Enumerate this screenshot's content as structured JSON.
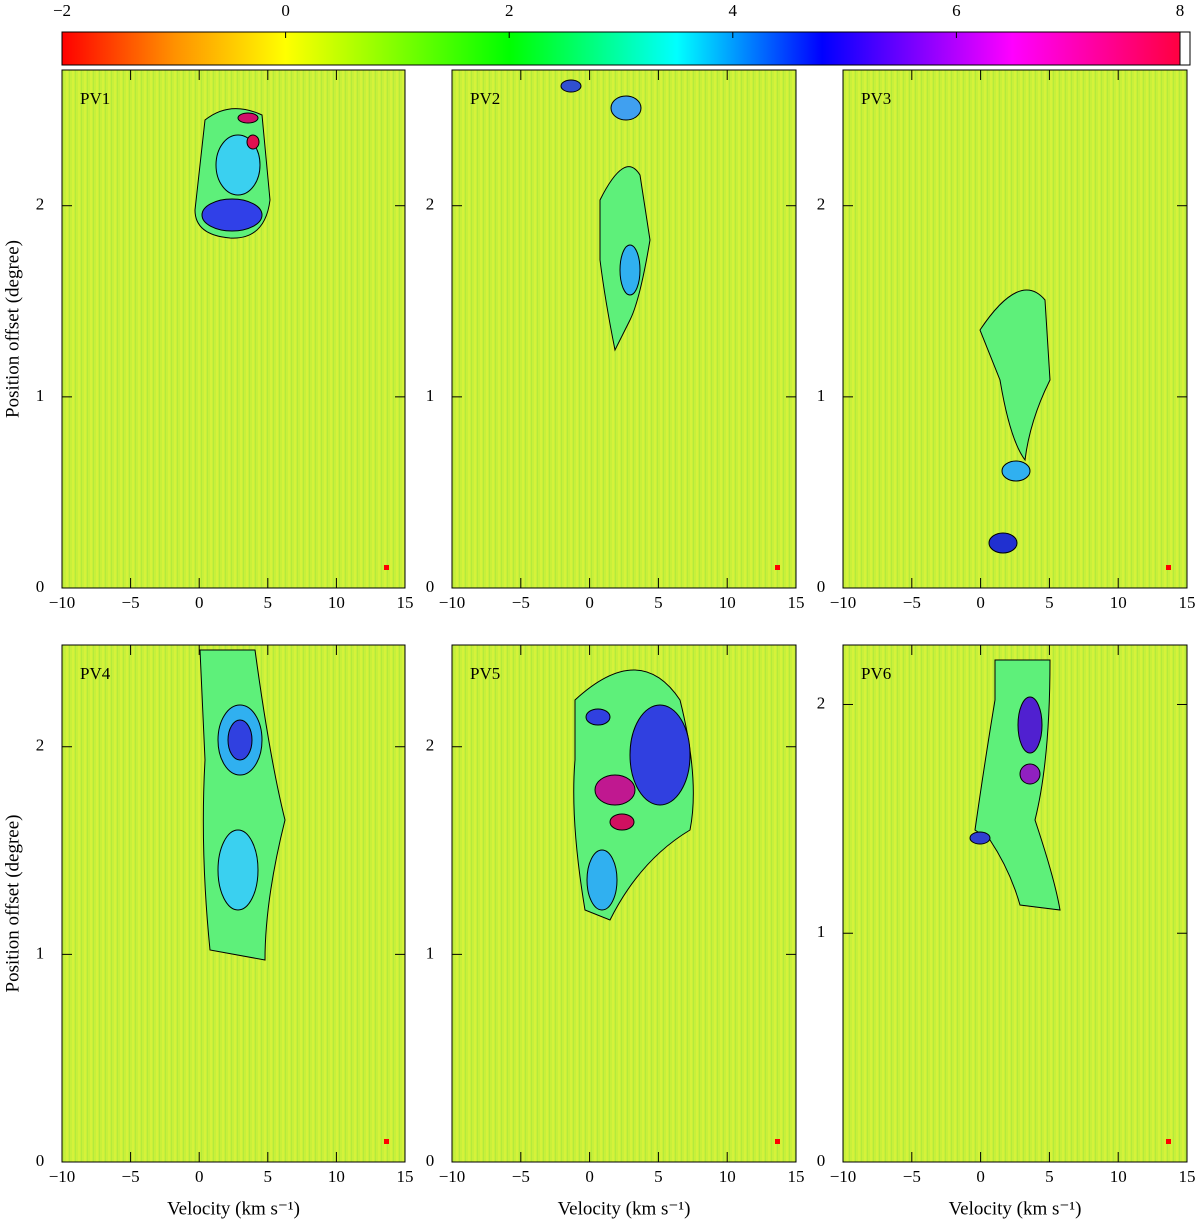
{
  "colorbar": {
    "lim": [
      -2,
      8
    ],
    "ticks": [
      {
        "value": -2,
        "label": "−2"
      },
      0,
      2,
      4,
      6,
      8
    ]
  },
  "chart_data": [
    {
      "type": "heatmap",
      "title": "PV1",
      "ylabel": "Position offset (degree)",
      "xlim": [
        -10,
        15
      ],
      "xticks": [
        {
          "value": -10,
          "label": "−10"
        },
        {
          "value": -5,
          "label": "−5"
        },
        0,
        5,
        10,
        15
      ],
      "ylim": [
        0,
        2.71
      ],
      "yticks": [
        0,
        1,
        2
      ]
    },
    {
      "type": "heatmap",
      "title": "PV2",
      "xlim": [
        -10,
        15
      ],
      "xticks": [
        {
          "value": -10,
          "label": "−10"
        },
        {
          "value": -5,
          "label": "−5"
        },
        0,
        5,
        10,
        15
      ],
      "ylim": [
        0,
        2.71
      ],
      "yticks": [
        0,
        1,
        2
      ]
    },
    {
      "type": "heatmap",
      "title": "PV3",
      "xlim": [
        -10,
        15
      ],
      "xticks": [
        {
          "value": -10,
          "label": "−10"
        },
        {
          "value": -5,
          "label": "−5"
        },
        0,
        5,
        10,
        15
      ],
      "ylim": [
        0,
        2.71
      ],
      "yticks": [
        0,
        1,
        2
      ]
    },
    {
      "type": "heatmap",
      "title": "PV4",
      "ylabel": "Position offset (degree)",
      "xlabel": "Velocity (km s⁻¹)",
      "xlim": [
        -10,
        15
      ],
      "xticks": [
        {
          "value": -10,
          "label": "−10"
        },
        {
          "value": -5,
          "label": "−5"
        },
        0,
        5,
        10,
        15
      ],
      "ylim": [
        0,
        2.49
      ],
      "yticks": [
        0,
        1,
        2
      ]
    },
    {
      "type": "heatmap",
      "title": "PV5",
      "xlabel": "Velocity (km s⁻¹)",
      "xlim": [
        -10,
        15
      ],
      "xticks": [
        {
          "value": -10,
          "label": "−10"
        },
        {
          "value": -5,
          "label": "−5"
        },
        0,
        5,
        10,
        15
      ],
      "ylim": [
        0,
        2.49
      ],
      "yticks": [
        0,
        1,
        2
      ]
    },
    {
      "type": "heatmap",
      "title": "PV6",
      "xlabel": "Velocity (km s⁻¹)",
      "xlim": [
        -10,
        15
      ],
      "xticks": [
        {
          "value": -10,
          "label": "−10"
        },
        {
          "value": -5,
          "label": "−5"
        },
        0,
        5,
        10,
        15
      ],
      "ylim": [
        0,
        2.26
      ],
      "yticks": [
        0,
        1,
        2
      ]
    }
  ]
}
